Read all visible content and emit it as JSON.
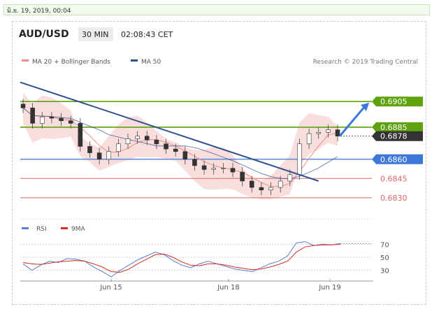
{
  "header": {
    "date_time": "มิ.ย. 19, 2019, 00:04",
    "symbol": "AUD/USD",
    "interval": "30 MIN",
    "clock": "02:08:43 CET",
    "credit": "Research © 2019 Trading Central"
  },
  "colors": {
    "resistance": "#5ea30e",
    "support_blue": "#3c78d8",
    "support_red": "#e06666",
    "price_tag": "#333333",
    "ma50": "#2f4f8f",
    "bollinger": "#f4c2c2"
  },
  "chart_data": [
    {
      "type": "candlestick",
      "legend": [
        {
          "name": "MA 20 + Bollinger Bands",
          "color": "#f28b82"
        },
        {
          "name": "MA 50",
          "color": "#2f4f8f"
        }
      ],
      "x_ticks": [
        "Jun 15",
        "Jun 18",
        "Jun 19"
      ],
      "levels": [
        {
          "label": "0.6905",
          "value": 0.6905,
          "style": "resistance"
        },
        {
          "label": "0.6885",
          "value": 0.6885,
          "style": "resistance"
        },
        {
          "label": "0.6878",
          "value": 0.6878,
          "style": "current-price"
        },
        {
          "label": "0.6860",
          "value": 0.686,
          "style": "support-blue"
        },
        {
          "label": "0.6845",
          "value": 0.6845,
          "style": "support-red"
        },
        {
          "label": "0.6830",
          "value": 0.683,
          "style": "support-red"
        }
      ],
      "ylim": [
        0.6819,
        0.6928
      ],
      "close_series": [
        0.69,
        0.6888,
        0.6893,
        0.6892,
        0.689,
        0.6888,
        0.687,
        0.6865,
        0.686,
        0.6866,
        0.6872,
        0.6876,
        0.6878,
        0.6875,
        0.6872,
        0.6868,
        0.6866,
        0.686,
        0.6855,
        0.6852,
        0.6853,
        0.6853,
        0.685,
        0.6843,
        0.6838,
        0.6836,
        0.6838,
        0.6843,
        0.6848,
        0.6872,
        0.688,
        0.6881,
        0.6883,
        0.6878
      ],
      "trendline": {
        "from": 0.692,
        "to": 0.6843
      },
      "forecast_arrow": {
        "from": 0.6878,
        "to": 0.6904
      }
    },
    {
      "type": "line",
      "legend": [
        {
          "name": "RSI",
          "color": "#5b7bd5"
        },
        {
          "name": "9MA",
          "color": "#d62d20"
        }
      ],
      "y_ticks": [
        70,
        50,
        30
      ],
      "rsi_series": [
        40,
        30,
        38,
        44,
        42,
        48,
        47,
        44,
        35,
        28,
        20,
        30,
        38,
        46,
        52,
        58,
        54,
        45,
        38,
        34,
        40,
        44,
        40,
        36,
        32,
        30,
        28,
        34,
        40,
        44,
        52,
        72,
        74,
        68,
        70,
        69,
        71
      ],
      "ma9_series": [
        42,
        40,
        39,
        41,
        43,
        44,
        45,
        44,
        40,
        35,
        28,
        27,
        32,
        40,
        47,
        54,
        55,
        50,
        43,
        38,
        37,
        40,
        40,
        38,
        35,
        33,
        31,
        32,
        35,
        39,
        44,
        58,
        66,
        68,
        69,
        69,
        70
      ]
    }
  ]
}
